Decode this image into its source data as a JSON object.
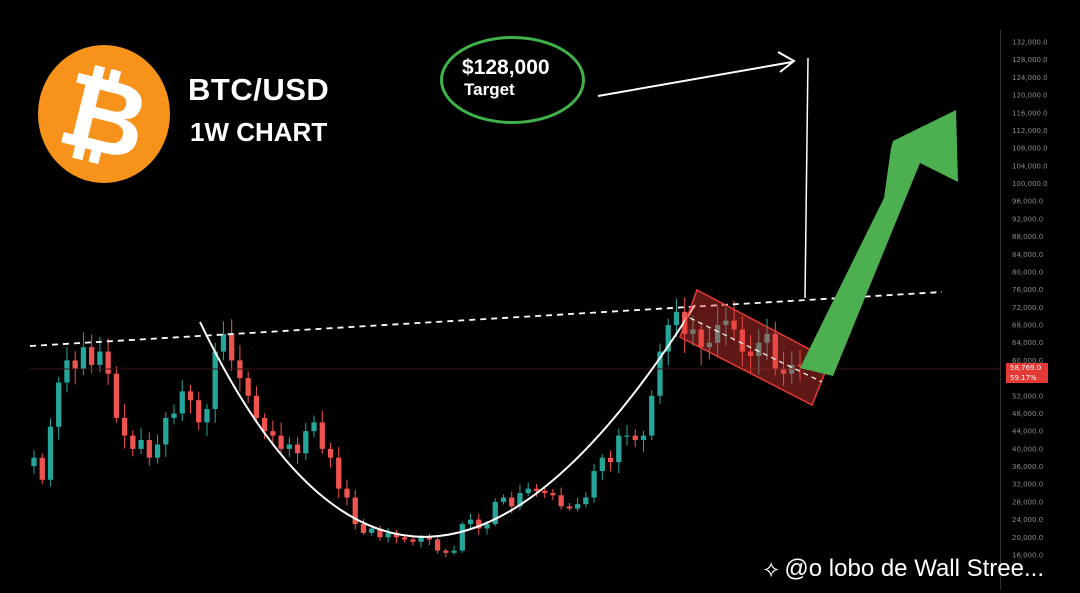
{
  "header": {
    "logo_symbol": "₿",
    "title": "BTC/USD",
    "subtitle": "1W CHART"
  },
  "annotation": {
    "target_price": "$128,000",
    "target_label": "Target"
  },
  "watermark": {
    "icon": "binance-diamond-icon",
    "text": "@o lobo de Wall Stree..."
  },
  "price_tag": {
    "price": "58,769.0",
    "change": "59.17%"
  },
  "colors": {
    "background": "#000000",
    "bull": "#26a69a",
    "bear": "#ef5350",
    "logo": "#f7931a",
    "arrow": "#4caf50",
    "channel": "#e53935"
  },
  "chart_data": {
    "type": "candlestick",
    "title": "BTC/USD",
    "subtitle": "1W CHART",
    "ylim": [
      14000,
      134000
    ],
    "y_ticks": [
      "132,000.0",
      "128,000.0",
      "124,000.0",
      "120,000.0",
      "116,000.0",
      "112,000.0",
      "108,000.0",
      "104,000.0",
      "100,000.0",
      "96,000.0",
      "92,000.0",
      "88,000.0",
      "84,000.0",
      "80,000.0",
      "76,000.0",
      "72,000.0",
      "68,000.0",
      "64,000.0",
      "60,000.0",
      "56,000.0",
      "52,000.0",
      "48,000.0",
      "44,000.0",
      "40,000.0",
      "36,000.0",
      "32,000.0",
      "28,000.0",
      "24,000.0",
      "20,000.0",
      "16,000.0"
    ],
    "y_tick_values": [
      132000,
      128000,
      124000,
      120000,
      116000,
      112000,
      108000,
      104000,
      100000,
      96000,
      92000,
      88000,
      84000,
      80000,
      76000,
      72000,
      68000,
      64000,
      60000,
      56000,
      52000,
      48000,
      44000,
      40000,
      36000,
      32000,
      28000,
      24000,
      20000,
      16000
    ],
    "current_price": 58769,
    "target": 128000,
    "closes": [
      38000,
      33000,
      45000,
      55000,
      60000,
      58000,
      63000,
      59000,
      62000,
      57000,
      47000,
      43000,
      40000,
      42000,
      38000,
      41000,
      47000,
      48000,
      53000,
      51000,
      46000,
      49000,
      62000,
      66000,
      60000,
      56000,
      52000,
      47000,
      44000,
      43000,
      40000,
      41000,
      39000,
      44000,
      46000,
      40000,
      38000,
      31000,
      29000,
      23000,
      21000,
      22000,
      20000,
      21000,
      20000,
      19500,
      19000,
      20000,
      19500,
      17000,
      16500,
      17000,
      23000,
      24000,
      22000,
      23000,
      28000,
      29000,
      27000,
      30000,
      31000,
      30500,
      30000,
      29500,
      27000,
      26500,
      27500,
      29000,
      35000,
      38000,
      37000,
      43000,
      43000,
      42000,
      43000,
      52000,
      62000,
      68000,
      71000,
      66000,
      67000,
      63000,
      64000,
      68000,
      69000,
      67000,
      62000,
      61000,
      64000,
      66000,
      58000,
      57000,
      59000,
      58769
    ]
  }
}
